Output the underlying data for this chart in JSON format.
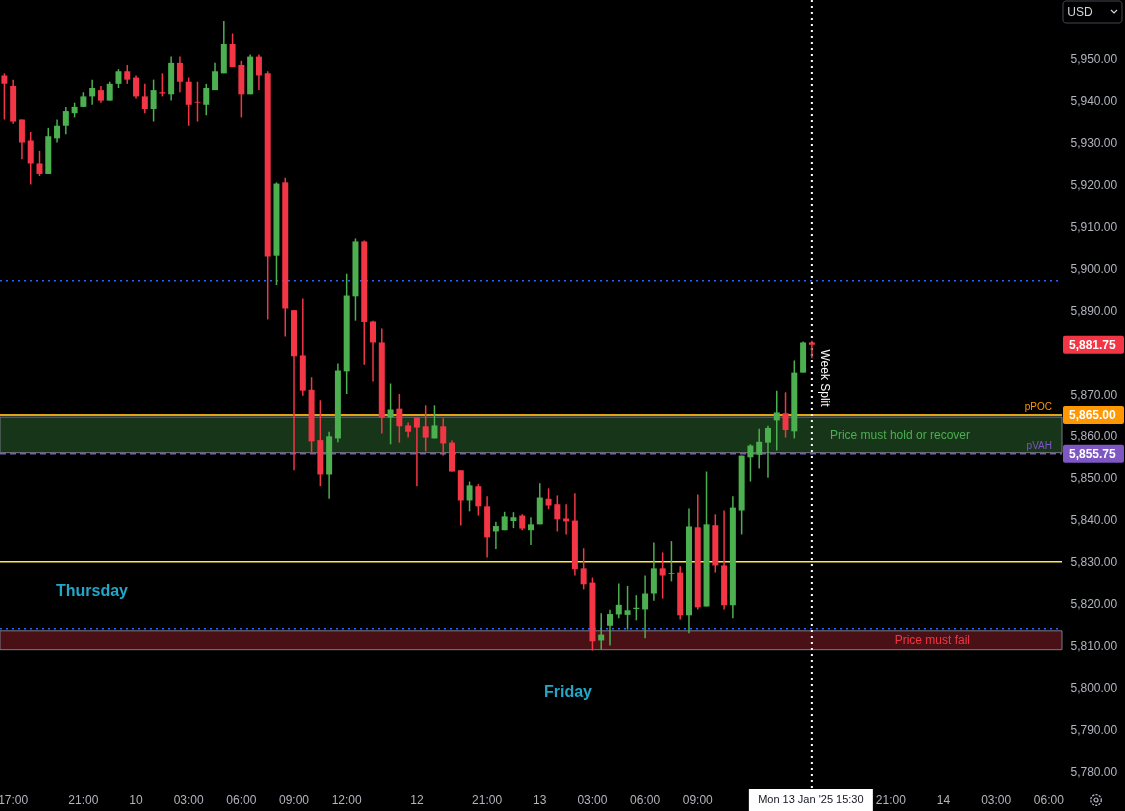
{
  "chart_data": {
    "type": "candlestick",
    "categories": [
      null,
      "17:00",
      null,
      null,
      null,
      null,
      null,
      null,
      null,
      "21:00",
      null,
      null,
      null,
      null,
      null,
      "10",
      null,
      null,
      null,
      null,
      null,
      "03:00",
      null,
      null,
      null,
      null,
      null,
      "06:00",
      null,
      null,
      null,
      null,
      null,
      "09:00",
      null,
      null,
      null,
      null,
      null,
      "12:00",
      null,
      null,
      null,
      null,
      null,
      null,
      null,
      "12",
      null,
      null,
      null,
      null,
      null,
      null,
      null,
      "21:00",
      null,
      null,
      null,
      null,
      null,
      "13",
      null,
      null,
      null,
      null,
      null,
      "03:00",
      null,
      null,
      null,
      null,
      null,
      "06:00",
      null,
      null,
      null,
      null,
      null,
      "09:00",
      null,
      null,
      null,
      null,
      null,
      null,
      null,
      null,
      null,
      null,
      null,
      null,
      "Mon 13 Jan '25  15:30",
      null,
      null,
      null,
      null,
      null,
      null,
      null,
      null,
      "21:00",
      null,
      null,
      null,
      null,
      null,
      "14",
      null,
      null,
      null,
      null,
      null,
      "03:00",
      null,
      null,
      null,
      null,
      null,
      "06:00",
      null
    ],
    "ohlc": [
      [
        5946,
        5946.5,
        5935.5,
        5944
      ],
      [
        5943.5,
        5945,
        5934.5,
        5935
      ],
      [
        5935.5,
        5935.5,
        5926,
        5930
      ],
      [
        5930.5,
        5932.5,
        5920,
        5925
      ],
      [
        5925,
        5928,
        5922,
        5922.5
      ],
      [
        5922.5,
        5933.5,
        5922.5,
        5931.5
      ],
      [
        5931,
        5935.5,
        5930,
        5934
      ],
      [
        5934,
        5938.5,
        5932,
        5937.5
      ],
      [
        5937,
        5939.5,
        5936,
        5938.5
      ],
      [
        5938.5,
        5942,
        5938.5,
        5941
      ],
      [
        5941,
        5945,
        5939,
        5943
      ],
      [
        5942.5,
        5943.5,
        5939.5,
        5940
      ],
      [
        5940,
        5944.5,
        5940,
        5944
      ],
      [
        5944,
        5947.5,
        5943,
        5947
      ],
      [
        5947,
        5948.5,
        5944,
        5945
      ],
      [
        5945.5,
        5946,
        5940.5,
        5941
      ],
      [
        5941,
        5944,
        5937,
        5938
      ],
      [
        5938,
        5945,
        5935,
        5942.5
      ],
      [
        5942,
        5946.5,
        5941,
        5941.7
      ],
      [
        5941.5,
        5950.5,
        5940,
        5949
      ],
      [
        5949,
        5950.5,
        5942,
        5944.5
      ],
      [
        5944.5,
        5945.5,
        5934,
        5939
      ],
      [
        5939.7,
        5944.5,
        5935,
        5939.5
      ],
      [
        5939,
        5944,
        5936.5,
        5943
      ],
      [
        5942.5,
        5949,
        5942.5,
        5947
      ],
      [
        5946.5,
        5959,
        5946.5,
        5953.5
      ],
      [
        5953.5,
        5956,
        5948,
        5948
      ],
      [
        5948.5,
        5949.5,
        5936,
        5941.5
      ],
      [
        5941.5,
        5951,
        5941.5,
        5950.5
      ],
      [
        5950.5,
        5951,
        5942.5,
        5946
      ],
      [
        5946.5,
        5947,
        5887.8,
        5902.8
      ],
      [
        5903,
        5920.5,
        5896,
        5920.2
      ],
      [
        5920.5,
        5921.6,
        5883.7,
        5890.4
      ],
      [
        5890,
        5890,
        5851.8,
        5879
      ],
      [
        5879.2,
        5892.8,
        5869.6,
        5870.8
      ],
      [
        5871,
        5874,
        5856,
        5858.7
      ],
      [
        5859,
        5868.5,
        5848,
        5850.8
      ],
      [
        5850.8,
        5861,
        5845,
        5859.9
      ],
      [
        5859.4,
        5877.3,
        5858.5,
        5875.6
      ],
      [
        5875.4,
        5898.7,
        5870,
        5893.5
      ],
      [
        5893.3,
        5907.1,
        5887.5,
        5906.4
      ],
      [
        5906.4,
        5906.6,
        5877,
        5887.2
      ],
      [
        5887.3,
        5887.5,
        5873,
        5882.3
      ],
      [
        5882.3,
        5885.6,
        5860.6,
        5864.4
      ],
      [
        5864.4,
        5872.5,
        5858,
        5866.3
      ],
      [
        5866.5,
        5870,
        5858.4,
        5862.3
      ],
      [
        5862.5,
        5863.2,
        5859.6,
        5861
      ],
      [
        5864.4,
        5864.4,
        5848,
        5862
      ],
      [
        5862.3,
        5867.3,
        5856.3,
        5859.6
      ],
      [
        5859.4,
        5867.3,
        5859.4,
        5862.5
      ],
      [
        5862.3,
        5864.2,
        5855.3,
        5858.2
      ],
      [
        5858.4,
        5858.9,
        5851.5,
        5851.5
      ],
      [
        5851.8,
        5851.8,
        5838.6,
        5844.6
      ],
      [
        5844.6,
        5849.1,
        5842,
        5848.2
      ],
      [
        5848,
        5848.5,
        5841,
        5843.2
      ],
      [
        5843.2,
        5845.6,
        5831,
        5835.8
      ],
      [
        5837.2,
        5839.5,
        5833,
        5838.5
      ],
      [
        5837.5,
        5841.9,
        5837.5,
        5840.8
      ],
      [
        5839.7,
        5841.8,
        5838,
        5840.6
      ],
      [
        5841,
        5841.3,
        5837.5,
        5837.9
      ],
      [
        5837.5,
        5840.6,
        5834,
        5838.9
      ],
      [
        5838.9,
        5848.7,
        5838.9,
        5845.3
      ],
      [
        5845,
        5847.5,
        5842.5,
        5843.4
      ],
      [
        5843.7,
        5845.8,
        5837.2,
        5840.1
      ],
      [
        5840.3,
        5843.7,
        5836.5,
        5839.6
      ],
      [
        5839.8,
        5846.3,
        5826.7,
        5828.2
      ],
      [
        5828.4,
        5833.2,
        5823.4,
        5824.6
      ],
      [
        5825,
        5826.2,
        5808.8,
        5811
      ],
      [
        5811.2,
        5817.7,
        5809,
        5812.6
      ],
      [
        5814.7,
        5818.5,
        5810,
        5817.5
      ],
      [
        5817.4,
        5824.8,
        5816.5,
        5819.7
      ],
      [
        5817.3,
        5824.2,
        5813.8,
        5818.4
      ],
      [
        5818.7,
        5822,
        5816,
        5819
      ],
      [
        5818.6,
        5826.7,
        5811.7,
        5822.4
      ],
      [
        5822.4,
        5834.6,
        5820.7,
        5828.4
      ],
      [
        5828.4,
        5832.2,
        5821.2,
        5826.7
      ],
      [
        5827.1,
        5834.9,
        5825.3,
        5827.3
      ],
      [
        5827.4,
        5828.9,
        5816.2,
        5817.2
      ],
      [
        5817.2,
        5842.7,
        5812.9,
        5838.4
      ],
      [
        5838.2,
        5846,
        5818.6,
        5819.1
      ],
      [
        5819.3,
        5851.5,
        5819.3,
        5838.9
      ],
      [
        5838.7,
        5841.3,
        5827.4,
        5829.1
      ],
      [
        5829.1,
        5842.2,
        5818.6,
        5819.6
      ],
      [
        5819.6,
        5845.6,
        5816.5,
        5842.9
      ],
      [
        5842.2,
        5855.3,
        5836.5,
        5855.3
      ],
      [
        5854.9,
        5858,
        5849.1,
        5857.7
      ],
      [
        5855.5,
        5861.7,
        5852.2,
        5858.6
      ],
      [
        5858.4,
        5862.4,
        5850,
        5861.9
      ],
      [
        5863.7,
        5870.8,
        5856.5,
        5865.6
      ],
      [
        5865.4,
        5870.4,
        5859.6,
        5861.4
      ],
      [
        5861.1,
        5878,
        5859.4,
        5875.1
      ],
      [
        5875.1,
        5882.5,
        5875.1,
        5882.3
      ],
      [
        5882.3,
        5882.7,
        5878.5,
        5881.75
      ],
      null,
      null,
      null,
      null,
      null,
      null,
      null,
      null,
      null,
      null,
      null,
      null,
      null,
      null,
      null,
      null,
      null,
      null,
      null,
      null,
      null,
      null,
      null,
      null,
      null,
      null,
      null,
      null
    ],
    "ylim": [
      5776,
      5964
    ],
    "yticks": [
      {
        "value": 5780,
        "label": "5,780.00"
      },
      {
        "value": 5790,
        "label": "5,790.00"
      },
      {
        "value": 5800,
        "label": "5,800.00"
      },
      {
        "value": 5810,
        "label": "5,810.00"
      },
      {
        "value": 5820,
        "label": "5,820.00"
      },
      {
        "value": 5830,
        "label": "5,830.00"
      },
      {
        "value": 5840,
        "label": "5,840.00"
      },
      {
        "value": 5850,
        "label": "5,850.00"
      },
      {
        "value": 5860,
        "label": "5,860.00"
      },
      {
        "value": 5870,
        "label": "5,870.00"
      },
      {
        "value": 5890,
        "label": "5,890.00"
      },
      {
        "value": 5900,
        "label": "5,900.00"
      },
      {
        "value": 5910,
        "label": "5,910.00"
      },
      {
        "value": 5920,
        "label": "5,920.00"
      },
      {
        "value": 5930,
        "label": "5,930.00"
      },
      {
        "value": 5940,
        "label": "5,940.00"
      },
      {
        "value": 5950,
        "label": "5,950.00"
      }
    ],
    "ref_lines": [
      {
        "axis": "y",
        "value": 5897,
        "color": "#2962ff",
        "line_style": "dotted"
      },
      {
        "axis": "y",
        "value": 5865,
        "color": "#ffeb3b",
        "line_style": "solid"
      },
      {
        "axis": "y",
        "value": 5865,
        "label": "pPOC",
        "color": "#ff9800",
        "line_style": "dashed"
      },
      {
        "axis": "y",
        "value": 5855.75,
        "label": "pVAH",
        "color": "#7e57c2",
        "line_style": "dashed"
      },
      {
        "axis": "y",
        "value": 5830,
        "color": "#ffeb3b",
        "line_style": "solid"
      },
      {
        "axis": "y",
        "value": 5814,
        "color": "#2962ff",
        "line_style": "dotted"
      },
      {
        "axis": "x",
        "value": "Mon 13 Jan '25  15:30",
        "label": "Week Split",
        "color": "#ffffff",
        "line_style": "dotted"
      }
    ],
    "bands": [
      {
        "axis": "y",
        "from": 5856,
        "to": 5864.5,
        "label": "Price must hold or recover",
        "color": "#4caf50"
      },
      {
        "axis": "y",
        "from": 5809,
        "to": 5813.5,
        "label": "Price must fail",
        "color": "#f23645"
      }
    ],
    "annotations": [
      "Thursday",
      "Friday",
      "USD",
      "5,865.00",
      "5,855.75",
      "5,881.75"
    ]
  }
}
